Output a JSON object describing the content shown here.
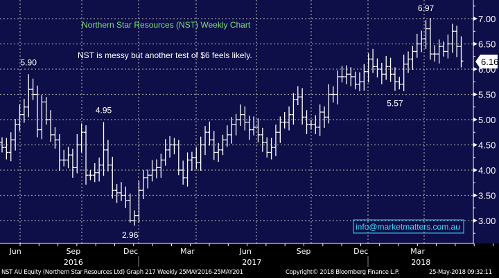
{
  "chart_data": {
    "type": "ohlc-bar",
    "title": "Northern Star Resources (NST) Weekly Chart",
    "subtitle": "NST is messy but another test of $6 feels likely.",
    "frequency": "weekly",
    "start_date": "2016-05-25",
    "end_date": "2018-05-25",
    "ylim": [
      2.6,
      7.35
    ],
    "yticks": [
      3.0,
      3.5,
      4.0,
      4.5,
      5.0,
      5.5,
      6.0,
      6.5,
      7.0
    ],
    "ytick_labels": [
      "3.00",
      "3.50",
      "4.00",
      "4.50",
      "5.00",
      "5.50",
      "6.00",
      "6.50",
      "7.00"
    ],
    "y_axis_side": "right",
    "x_month_labels": [
      {
        "label": "Jun",
        "date": "2016-06-15"
      },
      {
        "label": "Sep",
        "date": "2016-09-15"
      },
      {
        "label": "Dec",
        "date": "2016-12-15"
      },
      {
        "label": "Mar",
        "date": "2017-03-15"
      },
      {
        "label": "Jun",
        "date": "2017-06-15"
      },
      {
        "label": "Sep",
        "date": "2017-09-15"
      },
      {
        "label": "Dec",
        "date": "2017-12-15"
      },
      {
        "label": "Mar",
        "date": "2018-03-15"
      }
    ],
    "x_year_labels": [
      {
        "label": "2016",
        "date": "2016-09-15"
      },
      {
        "label": "2017",
        "date": "2017-06-25"
      },
      {
        "label": "2018",
        "date": "2018-03-20"
      }
    ],
    "weekly_close": [
      4.45,
      4.35,
      4.6,
      4.9,
      5.1,
      5.25,
      5.6,
      5.5,
      4.8,
      5.35,
      5.0,
      4.7,
      4.6,
      4.2,
      4.2,
      4.3,
      4.05,
      4.5,
      4.75,
      3.9,
      3.9,
      3.95,
      4.1,
      4.4,
      4.1,
      3.6,
      3.55,
      3.5,
      3.4,
      3.0,
      3.1,
      3.6,
      3.85,
      3.9,
      4.0,
      4.05,
      4.2,
      4.4,
      4.5,
      4.5,
      4.0,
      3.85,
      4.2,
      4.25,
      4.15,
      4.5,
      4.75,
      4.6,
      4.35,
      4.4,
      4.6,
      4.7,
      4.9,
      5.0,
      5.1,
      4.95,
      4.8,
      4.85,
      4.7,
      4.55,
      4.35,
      4.45,
      4.75,
      4.95,
      4.95,
      5.1,
      5.4,
      5.45,
      5.05,
      4.9,
      4.9,
      4.85,
      5.15,
      5.05,
      5.5,
      5.5,
      5.85,
      5.85,
      5.9,
      5.85,
      5.7,
      5.75,
      5.95,
      6.2,
      6.05,
      6.0,
      5.9,
      6.05,
      5.9,
      5.75,
      5.7,
      6.1,
      6.2,
      6.35,
      6.5,
      6.6,
      6.8,
      6.3,
      6.3,
      6.45,
      6.35,
      6.5,
      6.75,
      6.45,
      6.16
    ],
    "annotations": [
      {
        "text": "5.90",
        "value": 5.9,
        "week": 6,
        "type": "high"
      },
      {
        "text": "4.95",
        "value": 4.95,
        "week": 23,
        "type": "high"
      },
      {
        "text": "2.96",
        "value": 2.96,
        "week": 29,
        "type": "low"
      },
      {
        "text": "5.57",
        "value": 5.57,
        "week": 89,
        "type": "low"
      },
      {
        "text": "6.97",
        "value": 6.97,
        "week": 96,
        "type": "high"
      }
    ],
    "last_price": "6.16",
    "grid": true,
    "colors": {
      "background": "#0e0e48",
      "bars": "#ffffff",
      "grid": "#9a9a9a",
      "title": "#7fe07f",
      "email": "#33e0ff"
    }
  },
  "watermark_email": "info@marketmatters.com.au",
  "footer": {
    "security": "NST AU Equity (Northern Star Resources Ltd) Graph 217  Weekly 25MAY2016-25MAY201",
    "copyright": "Copyright© 2018 Bloomberg Finance L.P.",
    "timestamp": "25-May-2018 09:32:11"
  }
}
